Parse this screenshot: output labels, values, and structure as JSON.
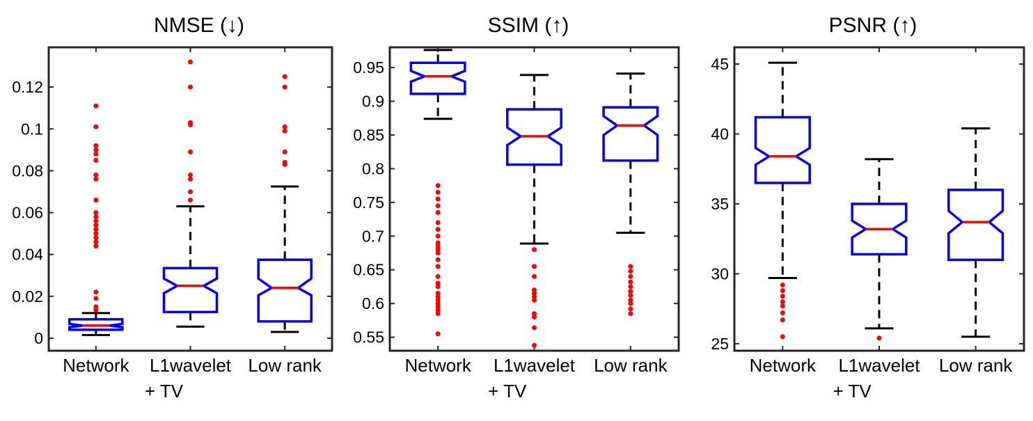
{
  "colors": {
    "box": "#0000ff",
    "median": "#ff0000",
    "outlier": "#ff0000",
    "whisker": "#000000",
    "frame": "#262626"
  },
  "chart_data": [
    {
      "type": "box",
      "title": "NMSE (↓)",
      "xlabel": "",
      "ylabel": "",
      "ylim": [
        -0.006,
        0.139
      ],
      "yticks": [
        0,
        0.02,
        0.04,
        0.06,
        0.08,
        0.1,
        0.12
      ],
      "ytick_labels": [
        "0",
        "0.02",
        "0.04",
        "0.06",
        "0.08",
        "0.1",
        "0.12"
      ],
      "categories": [
        {
          "line1": "Network",
          "line2": ""
        },
        {
          "line1": "L1wavelet",
          "line2": "+ TV"
        },
        {
          "line1": "Low rank",
          "line2": ""
        }
      ],
      "boxes": [
        {
          "whisker_low": 0.0015,
          "q1": 0.004,
          "median": 0.006,
          "q3": 0.009,
          "whisker_high": 0.012,
          "notch_low": 0.0052,
          "notch_high": 0.0068,
          "outliers": [
            0.0135,
            0.015,
            0.019,
            0.022,
            0.044,
            0.046,
            0.048,
            0.05,
            0.052,
            0.054,
            0.056,
            0.058,
            0.06,
            0.066,
            0.076,
            0.078,
            0.085,
            0.088,
            0.09,
            0.092,
            0.101,
            0.111
          ]
        },
        {
          "whisker_low": 0.0055,
          "q1": 0.0125,
          "median": 0.025,
          "q3": 0.0335,
          "whisker_high": 0.063,
          "notch_low": 0.0215,
          "notch_high": 0.0285,
          "outliers": [
            0.066,
            0.07,
            0.076,
            0.078,
            0.089,
            0.102,
            0.103,
            0.12,
            0.132
          ]
        },
        {
          "whisker_low": 0.003,
          "q1": 0.008,
          "median": 0.024,
          "q3": 0.0375,
          "whisker_high": 0.0725,
          "notch_low": 0.0205,
          "notch_high": 0.0285,
          "outliers": [
            0.083,
            0.084,
            0.089,
            0.099,
            0.101,
            0.12,
            0.125
          ]
        }
      ]
    },
    {
      "type": "box",
      "title": "SSIM (↑)",
      "xlabel": "",
      "ylabel": "",
      "ylim": [
        0.53,
        0.98
      ],
      "yticks": [
        0.55,
        0.6,
        0.65,
        0.7,
        0.75,
        0.8,
        0.85,
        0.9,
        0.95
      ],
      "ytick_labels": [
        "0.55",
        "0.6",
        "0.65",
        "0.7",
        "0.75",
        "0.8",
        "0.85",
        "0.9",
        "0.95"
      ],
      "categories": [
        {
          "line1": "Network",
          "line2": ""
        },
        {
          "line1": "L1wavelet",
          "line2": "+ TV"
        },
        {
          "line1": "Low rank",
          "line2": ""
        }
      ],
      "boxes": [
        {
          "whisker_low": 0.874,
          "q1": 0.911,
          "median": 0.937,
          "q3": 0.957,
          "whisker_high": 0.976,
          "notch_low": 0.929,
          "notch_high": 0.945,
          "outliers": [
            0.555,
            0.585,
            0.59,
            0.595,
            0.6,
            0.605,
            0.61,
            0.615,
            0.625,
            0.63,
            0.64,
            0.655,
            0.665,
            0.675,
            0.68,
            0.685,
            0.69,
            0.7,
            0.71,
            0.72,
            0.735,
            0.745,
            0.755,
            0.765,
            0.775
          ]
        },
        {
          "whisker_low": 0.689,
          "q1": 0.806,
          "median": 0.848,
          "q3": 0.888,
          "whisker_high": 0.939,
          "notch_low": 0.835,
          "notch_high": 0.861,
          "outliers": [
            0.538,
            0.564,
            0.58,
            0.585,
            0.605,
            0.61,
            0.615,
            0.62,
            0.64,
            0.655,
            0.68
          ]
        },
        {
          "whisker_low": 0.705,
          "q1": 0.812,
          "median": 0.864,
          "q3": 0.891,
          "whisker_high": 0.941,
          "notch_low": 0.85,
          "notch_high": 0.878,
          "outliers": [
            0.585,
            0.592,
            0.6,
            0.605,
            0.612,
            0.618,
            0.625,
            0.632,
            0.64,
            0.648,
            0.655
          ]
        }
      ]
    },
    {
      "type": "box",
      "title": "PSNR (↑)",
      "xlabel": "",
      "ylabel": "",
      "ylim": [
        24.5,
        46.2
      ],
      "yticks": [
        25,
        30,
        35,
        40,
        45
      ],
      "ytick_labels": [
        "25",
        "30",
        "35",
        "40",
        "45"
      ],
      "categories": [
        {
          "line1": "Network",
          "line2": ""
        },
        {
          "line1": "L1wavelet",
          "line2": "+ TV"
        },
        {
          "line1": "Low rank",
          "line2": ""
        }
      ],
      "boxes": [
        {
          "whisker_low": 29.7,
          "q1": 36.5,
          "median": 38.4,
          "q3": 41.2,
          "whisker_high": 45.1,
          "notch_low": 37.8,
          "notch_high": 39.0,
          "outliers": [
            25.5,
            26.7,
            27.2,
            27.7,
            28.0,
            28.4,
            28.8,
            29.2
          ]
        },
        {
          "whisker_low": 26.1,
          "q1": 31.4,
          "median": 33.2,
          "q3": 35.0,
          "whisker_high": 38.2,
          "notch_low": 32.6,
          "notch_high": 33.8,
          "outliers": [
            25.4
          ]
        },
        {
          "whisker_low": 25.5,
          "q1": 31.0,
          "median": 33.7,
          "q3": 36.0,
          "whisker_high": 40.4,
          "notch_low": 32.9,
          "notch_high": 34.5,
          "outliers": []
        }
      ]
    }
  ]
}
